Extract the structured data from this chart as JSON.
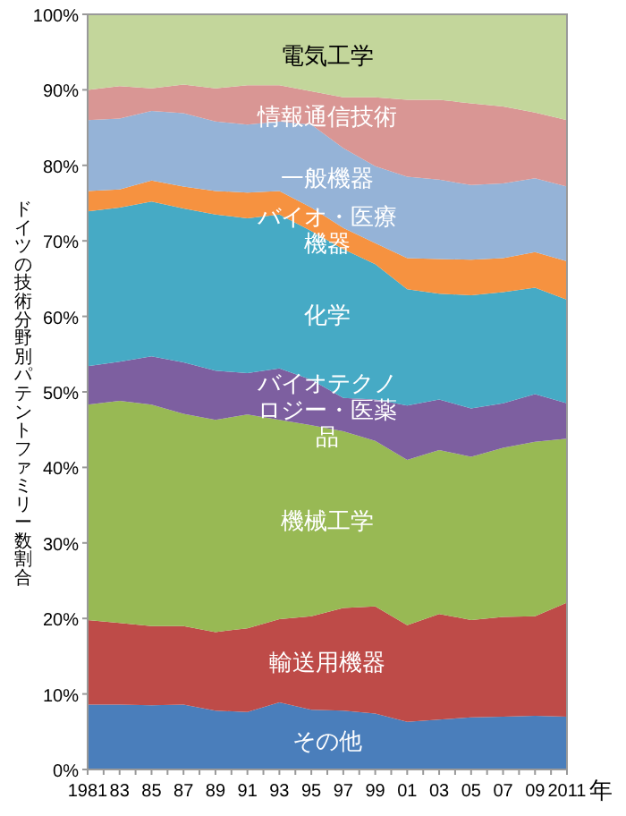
{
  "chart_data": {
    "type": "area",
    "stacked": true,
    "xlabel": "年",
    "ylabel": "ドイツの技術分野別パテントファミリー数割合",
    "x": [
      1981,
      1983,
      1985,
      1987,
      1989,
      1991,
      1993,
      1995,
      1997,
      1999,
      2001,
      2003,
      2005,
      2007,
      2009,
      2011
    ],
    "xlim": [
      1981,
      2011
    ],
    "ylim": [
      0,
      100
    ],
    "xticks": [
      {
        "value": 1981,
        "label": "1981"
      },
      {
        "value": 1982,
        "label": null
      },
      {
        "value": 1983,
        "label": "83"
      },
      {
        "value": 1984,
        "label": null
      },
      {
        "value": 1985,
        "label": "85"
      },
      {
        "value": 1986,
        "label": null
      },
      {
        "value": 1987,
        "label": "87"
      },
      {
        "value": 1988,
        "label": null
      },
      {
        "value": 1989,
        "label": "89"
      },
      {
        "value": 1990,
        "label": null
      },
      {
        "value": 1991,
        "label": "91"
      },
      {
        "value": 1992,
        "label": null
      },
      {
        "value": 1993,
        "label": "93"
      },
      {
        "value": 1994,
        "label": null
      },
      {
        "value": 1995,
        "label": "95"
      },
      {
        "value": 1996,
        "label": null
      },
      {
        "value": 1997,
        "label": "97"
      },
      {
        "value": 1998,
        "label": null
      },
      {
        "value": 1999,
        "label": "99"
      },
      {
        "value": 2000,
        "label": null
      },
      {
        "value": 2001,
        "label": "01"
      },
      {
        "value": 2002,
        "label": null
      },
      {
        "value": 2003,
        "label": "03"
      },
      {
        "value": 2004,
        "label": null
      },
      {
        "value": 2005,
        "label": "05"
      },
      {
        "value": 2006,
        "label": null
      },
      {
        "value": 2007,
        "label": "07"
      },
      {
        "value": 2008,
        "label": null
      },
      {
        "value": 2009,
        "label": "09"
      },
      {
        "value": 2010,
        "label": null
      },
      {
        "value": 2011,
        "label": "2011"
      }
    ],
    "yticks": [
      {
        "value": 0,
        "label": "0%"
      },
      {
        "value": 10,
        "label": "10%"
      },
      {
        "value": 20,
        "label": "20%"
      },
      {
        "value": 30,
        "label": "30%"
      },
      {
        "value": 40,
        "label": "40%"
      },
      {
        "value": 50,
        "label": "50%"
      },
      {
        "value": 60,
        "label": "60%"
      },
      {
        "value": 70,
        "label": "70%"
      },
      {
        "value": 80,
        "label": "80%"
      },
      {
        "value": 90,
        "label": "90%"
      },
      {
        "value": 100,
        "label": "100%"
      }
    ],
    "grid": false,
    "series": [
      {
        "name": "その他",
        "color": "#4a7ebb",
        "values": [
          8.6,
          8.6,
          8.5,
          8.6,
          7.8,
          7.6,
          8.9,
          7.9,
          7.8,
          7.4,
          6.3,
          6.6,
          6.9,
          7.0,
          7.1,
          7.0
        ]
      },
      {
        "name": "輸送用機器",
        "color": "#be4b48",
        "values": [
          11.2,
          10.8,
          10.5,
          10.4,
          10.4,
          11.1,
          11.0,
          12.4,
          13.6,
          14.2,
          12.8,
          14.0,
          12.9,
          13.2,
          13.2,
          15.1
        ]
      },
      {
        "name": "機械工学",
        "color": "#98b954",
        "values": [
          28.5,
          29.4,
          29.3,
          28.1,
          28.1,
          28.3,
          26.4,
          25.3,
          23.4,
          21.9,
          21.9,
          21.7,
          21.6,
          22.4,
          23.1,
          21.7
        ]
      },
      {
        "name": "バイオテクノロジー・医薬品",
        "color": "#7d5fa0",
        "values": [
          5.1,
          5.2,
          6.4,
          6.8,
          6.5,
          5.5,
          6.8,
          6.0,
          4.4,
          5.5,
          7.2,
          6.7,
          6.4,
          5.9,
          6.3,
          4.7
        ]
      },
      {
        "name": "化学",
        "color": "#46aac5",
        "values": [
          20.5,
          20.4,
          20.5,
          20.4,
          20.7,
          20.5,
          20.4,
          19.7,
          19.7,
          17.9,
          15.4,
          14.0,
          15.0,
          14.7,
          14.1,
          13.7
        ]
      },
      {
        "name": "バイオ・医療機器",
        "color": "#f69240",
        "values": [
          2.7,
          2.4,
          2.8,
          2.9,
          3.1,
          3.4,
          3.1,
          3.1,
          2.8,
          2.8,
          4.1,
          4.6,
          4.7,
          4.5,
          4.7,
          5.1
        ]
      },
      {
        "name": "一般機器",
        "color": "#95b3d7",
        "values": [
          9.4,
          9.4,
          9.2,
          9.7,
          9.2,
          9.0,
          9.2,
          11.0,
          10.6,
          10.2,
          10.8,
          10.5,
          9.9,
          9.9,
          9.8,
          9.9
        ]
      },
      {
        "name": "情報通信技術",
        "color": "#d99694",
        "values": [
          4.0,
          4.3,
          3.0,
          3.8,
          4.4,
          5.2,
          4.8,
          4.4,
          6.7,
          9.1,
          10.2,
          10.6,
          10.8,
          10.2,
          8.7,
          8.8
        ]
      },
      {
        "name": "電気工学",
        "color": "#c3d69b",
        "values": [
          10.0,
          9.5,
          9.8,
          9.3,
          9.8,
          9.4,
          9.4,
          10.2,
          11.0,
          11.0,
          11.3,
          11.3,
          11.8,
          12.2,
          13.0,
          14.0
        ]
      }
    ]
  }
}
